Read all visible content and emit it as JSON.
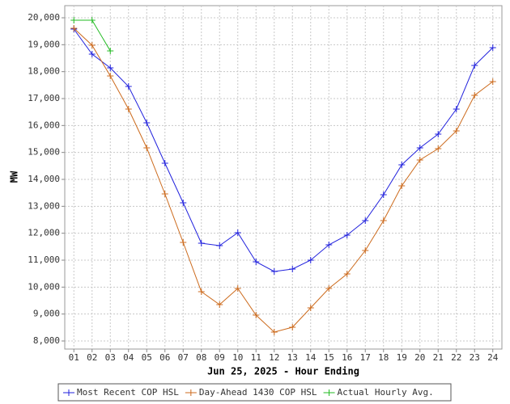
{
  "chart_data": {
    "type": "line",
    "x_label": "Jun 25, 2025 - Hour Ending",
    "y_label": "MW",
    "categories": [
      "01",
      "02",
      "03",
      "04",
      "05",
      "06",
      "07",
      "08",
      "09",
      "10",
      "11",
      "12",
      "13",
      "14",
      "15",
      "16",
      "17",
      "18",
      "19",
      "20",
      "21",
      "22",
      "23",
      "24"
    ],
    "series": [
      {
        "name": "Most Recent COP HSL",
        "color": "#2222dd",
        "values": [
          19580,
          18650,
          18140,
          17450,
          16100,
          14600,
          13130,
          11630,
          11540,
          12020,
          10940,
          10580,
          10670,
          11000,
          11570,
          11930,
          12470,
          13430,
          14540,
          15170,
          15680,
          16610,
          18230,
          18890
        ]
      },
      {
        "name": "Day-Ahead 1430 COP HSL",
        "color": "#cc6a1c",
        "values": [
          19610,
          18980,
          17840,
          16610,
          15170,
          13460,
          11660,
          9830,
          9350,
          9950,
          8960,
          8330,
          8510,
          9230,
          9950,
          10490,
          11360,
          12470,
          13760,
          14720,
          15140,
          15800,
          17120,
          17630
        ]
      },
      {
        "name": "Actual Hourly Avg.",
        "color": "#22bb22",
        "values": [
          19910,
          19910,
          18770,
          null,
          null,
          null,
          null,
          null,
          null,
          null,
          null,
          null,
          null,
          null,
          null,
          null,
          null,
          null,
          null,
          null,
          null,
          null,
          null,
          null
        ]
      }
    ],
    "ylim": [
      7700,
      20450
    ],
    "yticks": [
      {
        "value": 8000,
        "label": "8,000"
      },
      {
        "value": 9000,
        "label": "9,000"
      },
      {
        "value": 10000,
        "label": "10,000"
      },
      {
        "value": 11000,
        "label": "11,000"
      },
      {
        "value": 12000,
        "label": "12,000"
      },
      {
        "value": 13000,
        "label": "13,000"
      },
      {
        "value": 14000,
        "label": "14,000"
      },
      {
        "value": 15000,
        "label": "15,000"
      },
      {
        "value": 16000,
        "label": "16,000"
      },
      {
        "value": 17000,
        "label": "17,000"
      },
      {
        "value": 18000,
        "label": "18,000"
      },
      {
        "value": 19000,
        "label": "19,000"
      },
      {
        "value": 20000,
        "label": "20,000"
      }
    ],
    "grid": true,
    "legend": "bottom"
  }
}
